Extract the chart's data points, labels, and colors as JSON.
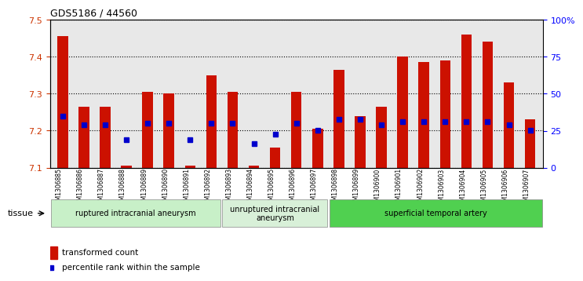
{
  "title": "GDS5186 / 44560",
  "samples": [
    "GSM1306885",
    "GSM1306886",
    "GSM1306887",
    "GSM1306888",
    "GSM1306889",
    "GSM1306890",
    "GSM1306891",
    "GSM1306892",
    "GSM1306893",
    "GSM1306894",
    "GSM1306895",
    "GSM1306896",
    "GSM1306897",
    "GSM1306898",
    "GSM1306899",
    "GSM1306900",
    "GSM1306901",
    "GSM1306902",
    "GSM1306903",
    "GSM1306904",
    "GSM1306905",
    "GSM1306906",
    "GSM1306907"
  ],
  "transformed_count": [
    7.455,
    7.265,
    7.265,
    7.105,
    7.305,
    7.3,
    7.105,
    7.35,
    7.305,
    7.105,
    7.155,
    7.305,
    7.205,
    7.365,
    7.24,
    7.265,
    7.4,
    7.385,
    7.39,
    7.46,
    7.44,
    7.33,
    7.23
  ],
  "percentile_rank": [
    7.24,
    7.215,
    7.215,
    7.175,
    7.22,
    7.22,
    7.175,
    7.22,
    7.22,
    7.165,
    7.19,
    7.22,
    7.2,
    7.23,
    7.23,
    7.215,
    7.225,
    7.225,
    7.225,
    7.225,
    7.225,
    7.215,
    7.2
  ],
  "groups": [
    {
      "label": "ruptured intracranial aneurysm",
      "start": 0,
      "end": 8,
      "color": "#c8f0c8"
    },
    {
      "label": "unruptured intracranial\naneurysm",
      "start": 8,
      "end": 13,
      "color": "#d8f0d8"
    },
    {
      "label": "superficial temporal artery",
      "start": 13,
      "end": 23,
      "color": "#50d050"
    }
  ],
  "ylim": [
    7.1,
    7.5
  ],
  "yticks": [
    7.1,
    7.2,
    7.3,
    7.4,
    7.5
  ],
  "right_yticks": [
    0,
    25,
    50,
    75,
    100
  ],
  "right_ylabels": [
    "0",
    "25",
    "50",
    "75",
    "100%"
  ],
  "bar_color": "#cc1100",
  "dot_color": "#0000cc",
  "bar_width": 0.5,
  "background_color": "#e8e8e8",
  "plot_bg_color": "#e8e8e8",
  "tissue_label": "tissue",
  "legend_bar_label": "transformed count",
  "legend_dot_label": "percentile rank within the sample"
}
